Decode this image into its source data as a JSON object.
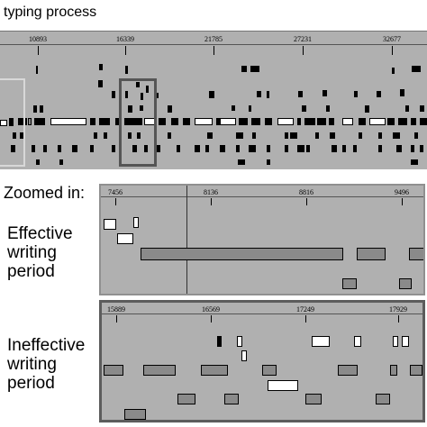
{
  "title": "typing process",
  "zoom_label": "Zoomed in:",
  "effective_label": [
    "Effective",
    "writing",
    "period"
  ],
  "ineffective_label": [
    "Ineffective",
    "writing",
    "period"
  ],
  "top_panel": {
    "ticks": [
      "10893",
      "16339",
      "21785",
      "27231",
      "32677"
    ]
  },
  "effective_panel": {
    "ticks": [
      "7456",
      "8136",
      "8816",
      "9496"
    ]
  },
  "ineffective_panel": {
    "ticks": [
      "15889",
      "16569",
      "17249",
      "17929"
    ]
  }
}
